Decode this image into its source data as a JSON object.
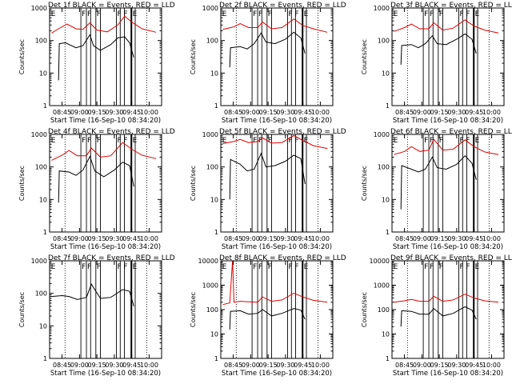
{
  "figure": {
    "colors": {
      "events": "#000000",
      "lld": "#e00000",
      "axes": "#000000",
      "marker": "#000000"
    },
    "x_ticks": [
      "08:45",
      "09:00",
      "09:15",
      "09:30",
      "09:45",
      "10:00"
    ],
    "x_ticks_small": [
      "08:45",
      "09:00",
      "09:15",
      "09:30",
      "09:45",
      "10:00"
    ],
    "xlabel": "Start Time (16-Sep-10 08:34:20)",
    "ylabel": "Counts/sec",
    "flag_labels": [
      "E",
      "F",
      "F",
      "F",
      "F",
      "F",
      "E"
    ]
  },
  "chart_data": [
    {
      "type": "line",
      "title": "Det 1f BLACK = Events, RED = LLD",
      "ylim": [
        1,
        1000
      ],
      "yscale": "log",
      "yticks": [
        "1",
        "10",
        "100",
        "1000"
      ],
      "series": [
        {
          "name": "BLACK = Events",
          "color": "#000000",
          "points": [
            [
              8.7,
              6
            ],
            [
              8.71,
              80
            ],
            [
              8.8,
              85
            ],
            [
              8.95,
              60
            ],
            [
              9.05,
              70
            ],
            [
              9.15,
              150
            ],
            [
              9.2,
              70
            ],
            [
              9.3,
              50
            ],
            [
              9.45,
              75
            ],
            [
              9.55,
              120
            ],
            [
              9.65,
              130
            ],
            [
              9.72,
              85
            ],
            [
              9.78,
              30
            ]
          ]
        },
        {
          "name": "RED = LLD",
          "color": "#e00000",
          "points": [
            [
              8.6,
              170
            ],
            [
              8.7,
              230
            ],
            [
              8.82,
              320
            ],
            [
              8.95,
              230
            ],
            [
              9.05,
              220
            ],
            [
              9.15,
              350
            ],
            [
              9.25,
              210
            ],
            [
              9.4,
              185
            ],
            [
              9.55,
              300
            ],
            [
              9.65,
              560
            ],
            [
              9.75,
              370
            ],
            [
              9.9,
              230
            ],
            [
              10.1,
              180
            ]
          ]
        }
      ]
    },
    {
      "type": "line",
      "title": "Det 2f BLACK = Events, RED = LLD",
      "ylim": [
        1,
        1000
      ],
      "yscale": "log",
      "yticks": [
        "1",
        "10",
        "100",
        "1000"
      ],
      "series": [
        {
          "name": "BLACK = Events",
          "color": "#000000",
          "points": [
            [
              8.7,
              15
            ],
            [
              8.71,
              60
            ],
            [
              8.85,
              65
            ],
            [
              8.95,
              55
            ],
            [
              9.05,
              80
            ],
            [
              9.15,
              170
            ],
            [
              9.22,
              90
            ],
            [
              9.35,
              80
            ],
            [
              9.5,
              110
            ],
            [
              9.62,
              180
            ],
            [
              9.72,
              120
            ],
            [
              9.78,
              40
            ]
          ]
        },
        {
          "name": "RED = LLD",
          "color": "#e00000",
          "points": [
            [
              8.6,
              220
            ],
            [
              8.75,
              260
            ],
            [
              8.85,
              330
            ],
            [
              8.97,
              250
            ],
            [
              9.1,
              250
            ],
            [
              9.17,
              370
            ],
            [
              9.3,
              230
            ],
            [
              9.45,
              250
            ],
            [
              9.62,
              460
            ],
            [
              9.75,
              290
            ],
            [
              9.9,
              230
            ],
            [
              10.1,
              180
            ]
          ]
        }
      ]
    },
    {
      "type": "line",
      "title": "Det 3f BLACK = Events, RED = LLD",
      "ylim": [
        1,
        1000
      ],
      "yscale": "log",
      "yticks": [
        "1",
        "10",
        "100",
        "1000"
      ],
      "series": [
        {
          "name": "BLACK = Events",
          "color": "#000000",
          "points": [
            [
              8.7,
              18
            ],
            [
              8.71,
              70
            ],
            [
              8.85,
              75
            ],
            [
              8.95,
              60
            ],
            [
              9.05,
              80
            ],
            [
              9.15,
              140
            ],
            [
              9.22,
              80
            ],
            [
              9.35,
              75
            ],
            [
              9.5,
              110
            ],
            [
              9.62,
              160
            ],
            [
              9.72,
              110
            ],
            [
              9.78,
              40
            ]
          ]
        },
        {
          "name": "RED = LLD",
          "color": "#e00000",
          "points": [
            [
              8.6,
              190
            ],
            [
              8.75,
              250
            ],
            [
              8.85,
              320
            ],
            [
              8.97,
              230
            ],
            [
              9.1,
              230
            ],
            [
              9.17,
              350
            ],
            [
              9.3,
              210
            ],
            [
              9.45,
              240
            ],
            [
              9.62,
              430
            ],
            [
              9.75,
              280
            ],
            [
              9.9,
              210
            ],
            [
              10.1,
              170
            ]
          ]
        }
      ]
    },
    {
      "type": "line",
      "title": "Det 4f BLACK = Events, RED = LLD",
      "ylim": [
        1,
        1000
      ],
      "yscale": "log",
      "yticks": [
        "1",
        "10",
        "100",
        "1000"
      ],
      "series": [
        {
          "name": "BLACK = Events",
          "color": "#000000",
          "points": [
            [
              8.7,
              8
            ],
            [
              8.71,
              75
            ],
            [
              8.85,
              70
            ],
            [
              8.95,
              55
            ],
            [
              9.05,
              80
            ],
            [
              9.15,
              210
            ],
            [
              9.22,
              75
            ],
            [
              9.35,
              50
            ],
            [
              9.5,
              80
            ],
            [
              9.62,
              140
            ],
            [
              9.72,
              110
            ],
            [
              9.78,
              25
            ]
          ]
        },
        {
          "name": "RED = LLD",
          "color": "#e00000",
          "points": [
            [
              8.6,
              160
            ],
            [
              8.75,
              230
            ],
            [
              8.85,
              320
            ],
            [
              8.97,
              220
            ],
            [
              9.1,
              220
            ],
            [
              9.17,
              380
            ],
            [
              9.3,
              200
            ],
            [
              9.45,
              220
            ],
            [
              9.62,
              560
            ],
            [
              9.75,
              350
            ],
            [
              9.9,
              230
            ],
            [
              10.1,
              180
            ]
          ]
        }
      ]
    },
    {
      "type": "line",
      "title": "Det 5f BLACK = Events, RED = LLD",
      "ylim": [
        1,
        1000
      ],
      "yscale": "log",
      "yticks": [
        "1",
        "10",
        "100",
        "1000"
      ],
      "series": [
        {
          "name": "BLACK = Events",
          "color": "#000000",
          "points": [
            [
              8.7,
              10
            ],
            [
              8.71,
              170
            ],
            [
              8.85,
              120
            ],
            [
              8.95,
              75
            ],
            [
              9.05,
              85
            ],
            [
              9.15,
              260
            ],
            [
              9.22,
              100
            ],
            [
              9.35,
              110
            ],
            [
              9.5,
              150
            ],
            [
              9.62,
              230
            ],
            [
              9.72,
              180
            ],
            [
              9.78,
              30
            ]
          ]
        },
        {
          "name": "RED = LLD",
          "color": "#e00000",
          "points": [
            [
              8.6,
              520
            ],
            [
              8.75,
              600
            ],
            [
              8.85,
              700
            ],
            [
              8.97,
              560
            ],
            [
              9.1,
              600
            ],
            [
              9.17,
              780
            ],
            [
              9.3,
              540
            ],
            [
              9.45,
              560
            ],
            [
              9.62,
              920
            ],
            [
              9.75,
              650
            ],
            [
              9.9,
              450
            ],
            [
              10.1,
              370
            ]
          ]
        }
      ]
    },
    {
      "type": "line",
      "title": "Det 6f BLACK = Events, RED = LLD",
      "ylim": [
        1,
        1000
      ],
      "yscale": "log",
      "yticks": [
        "1",
        "10",
        "100",
        "1000"
      ],
      "series": [
        {
          "name": "BLACK = Events",
          "color": "#000000",
          "points": [
            [
              8.7,
              5
            ],
            [
              8.71,
              110
            ],
            [
              8.85,
              85
            ],
            [
              8.95,
              70
            ],
            [
              9.05,
              85
            ],
            [
              9.15,
              200
            ],
            [
              9.22,
              95
            ],
            [
              9.35,
              85
            ],
            [
              9.5,
              120
            ],
            [
              9.62,
              220
            ],
            [
              9.72,
              130
            ],
            [
              9.78,
              40
            ]
          ]
        },
        {
          "name": "RED = LLD",
          "color": "#e00000",
          "points": [
            [
              8.6,
              240
            ],
            [
              8.75,
              300
            ],
            [
              8.85,
              420
            ],
            [
              8.97,
              300
            ],
            [
              9.1,
              330
            ],
            [
              9.17,
              700
            ],
            [
              9.3,
              330
            ],
            [
              9.45,
              350
            ],
            [
              9.62,
              680
            ],
            [
              9.75,
              420
            ],
            [
              9.9,
              290
            ],
            [
              10.1,
              240
            ]
          ]
        }
      ]
    },
    {
      "type": "line",
      "title": "Det 7f BLACK = Events, RED = LLD",
      "ylim": [
        1,
        1000
      ],
      "yscale": "log",
      "yticks": [
        "1",
        "10",
        "100",
        "1000"
      ],
      "series": [
        {
          "name": "BLACK = Events",
          "color": "#000000",
          "points": [
            [
              8.6,
              80
            ],
            [
              8.75,
              85
            ],
            [
              8.85,
              80
            ],
            [
              8.97,
              65
            ],
            [
              9.1,
              75
            ],
            [
              9.17,
              190
            ],
            [
              9.3,
              70
            ],
            [
              9.45,
              75
            ],
            [
              9.62,
              130
            ],
            [
              9.72,
              115
            ],
            [
              9.78,
              40
            ]
          ]
        }
      ]
    },
    {
      "type": "line",
      "title": "Det 8f BLACK = Events, RED = LLD",
      "ylim": [
        1,
        10000
      ],
      "yscale": "log",
      "yticks": [
        "1",
        "10",
        "100",
        "1000",
        "10000"
      ],
      "series": [
        {
          "name": "BLACK = Events",
          "color": "#000000",
          "points": [
            [
              8.7,
              15
            ],
            [
              8.71,
              85
            ],
            [
              8.85,
              90
            ],
            [
              8.97,
              65
            ],
            [
              9.1,
              70
            ],
            [
              9.17,
              100
            ],
            [
              9.3,
              55
            ],
            [
              9.45,
              70
            ],
            [
              9.62,
              110
            ],
            [
              9.72,
              95
            ],
            [
              9.78,
              40
            ]
          ]
        },
        {
          "name": "RED = LLD",
          "color": "#e00000",
          "points": [
            [
              8.6,
              160
            ],
            [
              8.7,
              190
            ],
            [
              8.74,
              10000
            ],
            [
              8.76,
              200
            ],
            [
              8.85,
              220
            ],
            [
              8.97,
              210
            ],
            [
              9.1,
              200
            ],
            [
              9.17,
              330
            ],
            [
              9.3,
              220
            ],
            [
              9.45,
              250
            ],
            [
              9.62,
              470
            ],
            [
              9.75,
              330
            ],
            [
              9.9,
              240
            ],
            [
              10.1,
              200
            ]
          ]
        }
      ]
    },
    {
      "type": "line",
      "title": "Det 9f BLACK = Events, RED = LLD",
      "ylim": [
        1,
        10000
      ],
      "yscale": "log",
      "yticks": [
        "1",
        "10",
        "100",
        "1000",
        "10000"
      ],
      "series": [
        {
          "name": "BLACK = Events",
          "color": "#000000",
          "points": [
            [
              8.7,
              20
            ],
            [
              8.71,
              90
            ],
            [
              8.85,
              85
            ],
            [
              8.97,
              65
            ],
            [
              9.1,
              65
            ],
            [
              9.17,
              110
            ],
            [
              9.3,
              55
            ],
            [
              9.45,
              70
            ],
            [
              9.62,
              130
            ],
            [
              9.72,
              95
            ],
            [
              9.78,
              40
            ]
          ]
        },
        {
          "name": "RED = LLD",
          "color": "#e00000",
          "points": [
            [
              8.6,
              200
            ],
            [
              8.75,
              230
            ],
            [
              8.85,
              260
            ],
            [
              8.97,
              220
            ],
            [
              9.1,
              220
            ],
            [
              9.17,
              350
            ],
            [
              9.3,
              220
            ],
            [
              9.45,
              250
            ],
            [
              9.62,
              430
            ],
            [
              9.75,
              300
            ],
            [
              9.9,
              230
            ],
            [
              10.1,
              200
            ]
          ]
        }
      ]
    }
  ]
}
